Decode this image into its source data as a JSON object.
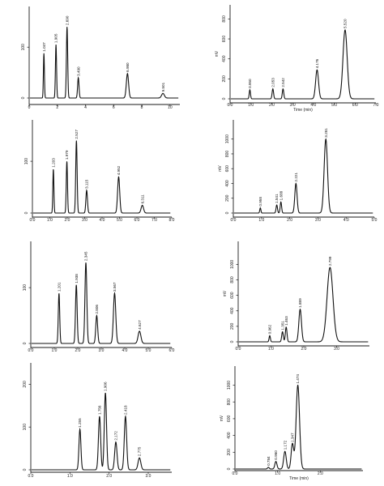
{
  "chart_data": [
    {
      "type": "line",
      "xlim": [
        0,
        10.7
      ],
      "ylim": [
        -10,
        180
      ],
      "xticks": [
        0,
        2,
        4,
        6,
        8,
        10
      ],
      "yticks": [
        0,
        100
      ],
      "xtick_labels": [
        "0",
        "2",
        "4",
        "6",
        "8",
        "10"
      ],
      "ytick_labels": [
        "0",
        "100"
      ],
      "xlabel": "",
      "ylabel": "",
      "peaks": [
        {
          "x": 1.047,
          "y": 88,
          "w": 0.035,
          "label": "1.047"
        },
        {
          "x": 1.905,
          "y": 105,
          "w": 0.04,
          "label": "1.905"
        },
        {
          "x": 2.69,
          "y": 140,
          "w": 0.045,
          "label": "2.690"
        },
        {
          "x": 3.49,
          "y": 40,
          "w": 0.05,
          "label": "3.490"
        },
        {
          "x": 6.98,
          "y": 48,
          "w": 0.08,
          "label": "6.980"
        },
        {
          "x": 9.501,
          "y": 9,
          "w": 0.1,
          "label": "9.501"
        }
      ]
    },
    {
      "type": "line",
      "xlim": [
        0,
        7.0
      ],
      "ylim": [
        -50,
        860
      ],
      "xticks": [
        0,
        1,
        2,
        3,
        4,
        5,
        6,
        7
      ],
      "yticks": [
        0,
        200,
        400,
        600,
        800
      ],
      "xtick_labels": [
        "0.0",
        "1.0",
        "2.0",
        "3.0",
        "4.0",
        "5.0",
        "6.0",
        "7.0"
      ],
      "ytick_labels": [
        "0",
        "200",
        "400",
        "600",
        "800"
      ],
      "xlabel": "Time (min)",
      "ylabel": "mV",
      "peaks": [
        {
          "x": 0.95,
          "y": 90,
          "w": 0.03,
          "label": "0.950"
        },
        {
          "x": 2.053,
          "y": 100,
          "w": 0.035,
          "label": "2.053"
        },
        {
          "x": 2.542,
          "y": 100,
          "w": 0.035,
          "label": "2.542"
        },
        {
          "x": 4.176,
          "y": 290,
          "w": 0.07,
          "label": "4.176"
        },
        {
          "x": 5.52,
          "y": 690,
          "w": 0.1,
          "label": "5.520"
        }
      ]
    },
    {
      "type": "line",
      "xlim": [
        0,
        8.0
      ],
      "ylim": [
        -10,
        180
      ],
      "xticks": [
        0,
        1,
        2,
        3,
        4,
        5,
        6,
        7,
        8
      ],
      "yticks": [
        0,
        100
      ],
      "xtick_labels": [
        "0.0",
        "1.0",
        "2.0",
        "3.0",
        "4.0",
        "5.0",
        "6.0",
        "7.0",
        "8.0"
      ],
      "ytick_labels": [
        "0",
        "100"
      ],
      "xlabel": "",
      "ylabel": "",
      "peaks": [
        {
          "x": 1.203,
          "y": 85,
          "w": 0.03,
          "label": "1.203"
        },
        {
          "x": 1.979,
          "y": 100,
          "w": 0.035,
          "label": "1.979"
        },
        {
          "x": 2.527,
          "y": 140,
          "w": 0.04,
          "label": "2.527"
        },
        {
          "x": 3.115,
          "y": 44,
          "w": 0.045,
          "label": "3.115"
        },
        {
          "x": 4.952,
          "y": 70,
          "w": 0.06,
          "label": "4.952"
        },
        {
          "x": 6.311,
          "y": 15,
          "w": 0.07,
          "label": "6.311"
        }
      ]
    },
    {
      "type": "line",
      "xlim": [
        0,
        5.0
      ],
      "ylim": [
        -60,
        1150
      ],
      "xticks": [
        0,
        1,
        2,
        3,
        4,
        5
      ],
      "yticks": [
        0,
        200,
        400,
        600,
        800,
        1000
      ],
      "xtick_labels": [
        "0.0",
        "1.0",
        "2.0",
        "3.0",
        "4.0",
        "5.0"
      ],
      "ytick_labels": [
        "0",
        "200",
        "400",
        "600",
        "800",
        "1000"
      ],
      "xlabel": "",
      "ylabel": "mV",
      "peaks": [
        {
          "x": 0.958,
          "y": 70,
          "w": 0.02,
          "label": "0.958"
        },
        {
          "x": 1.541,
          "y": 110,
          "w": 0.025,
          "label": "1.541"
        },
        {
          "x": 1.688,
          "y": 150,
          "w": 0.025,
          "label": "1.688"
        },
        {
          "x": 2.221,
          "y": 400,
          "w": 0.04,
          "label": "2.221"
        },
        {
          "x": 3.281,
          "y": 1000,
          "w": 0.06,
          "label": "3.281"
        }
      ]
    },
    {
      "type": "line",
      "xlim": [
        0,
        6.0
      ],
      "ylim": [
        -10,
        180
      ],
      "xticks": [
        0,
        1,
        2,
        3,
        4,
        5,
        6
      ],
      "yticks": [
        0,
        100
      ],
      "xtick_labels": [
        "0.0",
        "1.0",
        "2.0",
        "3.0",
        "4.0",
        "5.0",
        "6.0"
      ],
      "ytick_labels": [
        "0",
        "100"
      ],
      "xlabel": "",
      "ylabel": "",
      "peaks": [
        {
          "x": 1.201,
          "y": 90,
          "w": 0.03,
          "label": "1.201"
        },
        {
          "x": 1.938,
          "y": 105,
          "w": 0.035,
          "label": "1.938"
        },
        {
          "x": 2.345,
          "y": 145,
          "w": 0.04,
          "label": "2.345"
        },
        {
          "x": 2.806,
          "y": 50,
          "w": 0.04,
          "label": "2.806"
        },
        {
          "x": 3.567,
          "y": 90,
          "w": 0.05,
          "label": "3.567"
        },
        {
          "x": 4.627,
          "y": 22,
          "w": 0.06,
          "label": "4.627"
        }
      ]
    },
    {
      "type": "line",
      "xlim": [
        0,
        4.0
      ],
      "ylim": [
        -60,
        1150
      ],
      "xticks": [
        0,
        1,
        2,
        3
      ],
      "yticks": [
        0,
        200,
        400,
        600,
        800,
        1000
      ],
      "xtick_labels": [
        "0.0",
        "1.0",
        "2.0",
        "3.0"
      ],
      "ytick_labels": [
        "0",
        "200",
        "400",
        "600",
        "800",
        "1000"
      ],
      "xlabel": "",
      "ylabel": "mV",
      "peaks": [
        {
          "x": 0.962,
          "y": 80,
          "w": 0.02,
          "label": "0.962"
        },
        {
          "x": 1.351,
          "y": 130,
          "w": 0.025,
          "label": "1.351"
        },
        {
          "x": 1.463,
          "y": 190,
          "w": 0.025,
          "label": "1.463"
        },
        {
          "x": 1.889,
          "y": 420,
          "w": 0.04,
          "label": "1.889"
        },
        {
          "x": 2.799,
          "y": 960,
          "w": 0.09,
          "label": "2.799"
        }
      ]
    },
    {
      "type": "line",
      "xlim": [
        0,
        3.6
      ],
      "ylim": [
        -10,
        250
      ],
      "xticks": [
        0,
        1,
        2,
        3
      ],
      "yticks": [
        0,
        100,
        200
      ],
      "xtick_labels": [
        "0.0",
        "1.0",
        "2.0",
        "3.0"
      ],
      "ytick_labels": [
        "0",
        "100",
        "200"
      ],
      "xlabel": "",
      "ylabel": "",
      "peaks": [
        {
          "x": 1.255,
          "y": 95,
          "w": 0.025,
          "label": "1.255"
        },
        {
          "x": 1.756,
          "y": 125,
          "w": 0.028,
          "label": "1.756"
        },
        {
          "x": 1.906,
          "y": 180,
          "w": 0.028,
          "label": "1.906"
        },
        {
          "x": 2.172,
          "y": 65,
          "w": 0.03,
          "label": "2.172"
        },
        {
          "x": 2.418,
          "y": 125,
          "w": 0.03,
          "label": "2.418"
        },
        {
          "x": 2.775,
          "y": 28,
          "w": 0.035,
          "label": "2.775"
        }
      ]
    },
    {
      "type": "line",
      "xlim": [
        0,
        3.0
      ],
      "ylim": [
        -60,
        1150
      ],
      "xticks": [
        0,
        1,
        2
      ],
      "yticks": [
        0,
        200,
        400,
        600,
        800,
        1000
      ],
      "xtick_labels": [
        "0.0",
        "1.0",
        "2.0"
      ],
      "ytick_labels": [
        "0",
        "200",
        "400",
        "600",
        "800",
        "1000"
      ],
      "xlabel": "Time (min)",
      "ylabel": "mV",
      "peaks": [
        {
          "x": 0.784,
          "y": 20,
          "w": 0.02,
          "label": "0.784"
        },
        {
          "x": 0.96,
          "y": 90,
          "w": 0.025,
          "label": "0.960"
        },
        {
          "x": 1.172,
          "y": 210,
          "w": 0.03,
          "label": "1.172"
        },
        {
          "x": 1.347,
          "y": 300,
          "w": 0.03,
          "label": "1.347"
        },
        {
          "x": 1.474,
          "y": 1000,
          "w": 0.04,
          "label": "1.474"
        }
      ]
    }
  ]
}
